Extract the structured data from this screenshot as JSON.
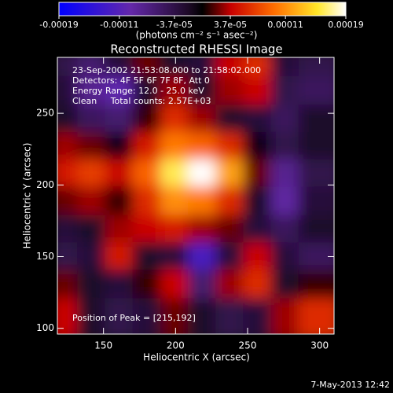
{
  "chart_data": {
    "type": "heatmap",
    "title": "Reconstructed RHESSI Image",
    "xlabel": "Heliocentric X (arcsec)",
    "ylabel": "Heliocentric Y (arcsec)",
    "annotations": [
      "23-Sep-2002 21:53:08.000 to 21:58:02.000",
      "Detectors: 4F 5F 6F 7F 8F, Att 0",
      "Energy Range: 12.0 - 25.0 keV",
      "Clean     Total counts: 2.57E+03"
    ],
    "peak_label": "Position of Peak = [215,192]",
    "footer": "7-May-2013 12:42",
    "xlim": [
      118,
      310
    ],
    "ylim": [
      96,
      289
    ],
    "xticks": [
      150,
      200,
      250,
      300
    ],
    "yticks": [
      100,
      150,
      200,
      250
    ],
    "colorbar": {
      "label": "(photons cm⁻² s⁻¹ asec⁻²)",
      "lim": [
        -0.00019,
        0.00019
      ],
      "ticks": [
        -0.00019,
        -0.00011,
        {
          "value": -3.7e-05,
          "label": "-3.7e-05"
        },
        {
          "value": 3.7e-05,
          "label": "3.7e-05"
        },
        0.00011,
        0.00019
      ]
    },
    "x": [
      127.6,
      146.8,
      166,
      185.2,
      204.4,
      223.6,
      242.8,
      262,
      281.2,
      300.4
    ],
    "y": [
      280,
      261,
      241,
      222,
      203,
      184,
      164,
      145,
      126,
      106
    ],
    "z": [
      [
        -4e-05,
        -6e-05,
        -3e-05,
        2e-05,
        -2e-05,
        -3e-05,
        4e-05,
        6e-05,
        -3e-05,
        -4e-05
      ],
      [
        -3e-05,
        -8e-05,
        -0.0001,
        -2e-05,
        3e-05,
        -2e-05,
        3e-05,
        4e-05,
        -4e-05,
        -5e-05
      ],
      [
        -2e-05,
        -5e-05,
        -6e-05,
        1e-05,
        6e-05,
        3e-05,
        -2e-05,
        -3e-05,
        -5e-05,
        -2e-05
      ],
      [
        3e-05,
        2e-05,
        -1e-05,
        5e-05,
        0.0001,
        9e-05,
        6e-05,
        -1e-05,
        -4e-05,
        -2e-05
      ],
      [
        5e-05,
        7e-05,
        4e-05,
        9e-05,
        0.00016,
        0.00019,
        0.00012,
        2e-05,
        -8e-05,
        -4e-05
      ],
      [
        2e-05,
        3e-05,
        1e-05,
        6e-05,
        0.00011,
        0.0001,
        6e-05,
        -2e-05,
        -9e-05,
        -3e-05
      ],
      [
        -3e-05,
        -2e-05,
        3e-05,
        4e-05,
        5e-05,
        3e-05,
        2e-05,
        -3e-05,
        -5e-05,
        -2e-05
      ],
      [
        -4e-05,
        -3e-05,
        5e-05,
        -2e-05,
        -3e-05,
        -0.00012,
        -3e-05,
        4e-05,
        -3e-05,
        -5e-05
      ],
      [
        2e-05,
        -2e-05,
        -3e-05,
        1e-05,
        4e-05,
        -6e-05,
        3e-05,
        6e-05,
        -2e-05,
        1e-05
      ],
      [
        4e-05,
        -2e-05,
        -4e-05,
        -3e-05,
        2e-05,
        -2e-05,
        -4e-05,
        -3e-05,
        3e-05,
        6e-05
      ]
    ]
  }
}
